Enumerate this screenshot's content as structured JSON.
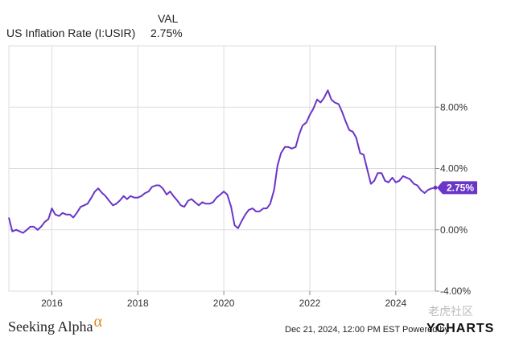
{
  "legend": {
    "value_header": "VAL",
    "series_name": "US Inflation Rate (I:USIR)",
    "series_value": "2.75%"
  },
  "footer": {
    "brand": "Seeking Alpha",
    "brand_mark": "α",
    "timestamp": "Dec 21, 2024, 12:00 PM EST",
    "powered_by": "Powered by",
    "provider": "YCHARTS",
    "watermark": "老虎社区"
  },
  "colors": {
    "series": "#6a35c9",
    "grid": "#dddddd",
    "axis": "#888888"
  },
  "chart_data": {
    "type": "line",
    "xlabel": "",
    "ylabel": "",
    "xlim": [
      2015.0,
      2024.92
    ],
    "ylim": [
      -4.0,
      12.0
    ],
    "x_ticks": [
      2016,
      2018,
      2020,
      2022,
      2024
    ],
    "x_tick_labels": [
      "2016",
      "2018",
      "2020",
      "2022",
      "2024"
    ],
    "y_ticks": [
      -4,
      0,
      4,
      8
    ],
    "y_tick_labels": [
      "-4.00%",
      "0.00%",
      "4.00%",
      "8.00%"
    ],
    "grid": true,
    "current_value_label": "2.75%",
    "series": [
      {
        "name": "US Inflation Rate (I:USIR)",
        "x": [
          2015.0,
          2015.08,
          2015.17,
          2015.25,
          2015.33,
          2015.42,
          2015.5,
          2015.58,
          2015.67,
          2015.75,
          2015.83,
          2015.92,
          2016.0,
          2016.08,
          2016.17,
          2016.25,
          2016.33,
          2016.42,
          2016.5,
          2016.58,
          2016.67,
          2016.75,
          2016.83,
          2016.92,
          2017.0,
          2017.08,
          2017.17,
          2017.25,
          2017.33,
          2017.42,
          2017.5,
          2017.58,
          2017.67,
          2017.75,
          2017.83,
          2017.92,
          2018.0,
          2018.08,
          2018.17,
          2018.25,
          2018.33,
          2018.42,
          2018.5,
          2018.58,
          2018.67,
          2018.75,
          2018.83,
          2018.92,
          2019.0,
          2019.08,
          2019.17,
          2019.25,
          2019.33,
          2019.42,
          2019.5,
          2019.58,
          2019.67,
          2019.75,
          2019.83,
          2019.92,
          2020.0,
          2020.08,
          2020.17,
          2020.25,
          2020.33,
          2020.42,
          2020.5,
          2020.58,
          2020.67,
          2020.75,
          2020.83,
          2020.92,
          2021.0,
          2021.08,
          2021.17,
          2021.25,
          2021.33,
          2021.42,
          2021.5,
          2021.58,
          2021.67,
          2021.75,
          2021.83,
          2021.92,
          2022.0,
          2022.08,
          2022.17,
          2022.25,
          2022.33,
          2022.42,
          2022.5,
          2022.58,
          2022.67,
          2022.75,
          2022.83,
          2022.92,
          2023.0,
          2023.08,
          2023.17,
          2023.25,
          2023.33,
          2023.42,
          2023.5,
          2023.58,
          2023.67,
          2023.75,
          2023.83,
          2023.92,
          2024.0,
          2024.08,
          2024.17,
          2024.25,
          2024.33,
          2024.42,
          2024.5,
          2024.58,
          2024.67,
          2024.75,
          2024.83,
          2024.92
        ],
        "values": [
          0.8,
          -0.1,
          -0.0,
          -0.1,
          -0.2,
          0.0,
          0.2,
          0.2,
          0.0,
          0.2,
          0.5,
          0.7,
          1.4,
          1.0,
          0.9,
          1.1,
          1.0,
          1.0,
          0.8,
          1.1,
          1.5,
          1.6,
          1.7,
          2.1,
          2.5,
          2.7,
          2.4,
          2.2,
          1.9,
          1.6,
          1.7,
          1.9,
          2.2,
          2.0,
          2.2,
          2.1,
          2.1,
          2.2,
          2.4,
          2.5,
          2.8,
          2.9,
          2.9,
          2.7,
          2.3,
          2.5,
          2.2,
          1.9,
          1.6,
          1.5,
          1.9,
          2.0,
          1.8,
          1.6,
          1.8,
          1.7,
          1.7,
          1.8,
          2.1,
          2.3,
          2.5,
          2.3,
          1.5,
          0.3,
          0.1,
          0.6,
          1.0,
          1.3,
          1.4,
          1.2,
          1.2,
          1.4,
          1.4,
          1.7,
          2.6,
          4.2,
          5.0,
          5.4,
          5.4,
          5.3,
          5.4,
          6.2,
          6.8,
          7.0,
          7.5,
          7.9,
          8.5,
          8.3,
          8.6,
          9.1,
          8.5,
          8.3,
          8.2,
          7.7,
          7.1,
          6.5,
          6.4,
          6.0,
          5.0,
          4.9,
          4.0,
          3.0,
          3.2,
          3.7,
          3.7,
          3.2,
          3.1,
          3.4,
          3.1,
          3.2,
          3.5,
          3.4,
          3.3,
          3.0,
          2.9,
          2.6,
          2.4,
          2.6,
          2.7,
          2.75
        ]
      }
    ]
  }
}
